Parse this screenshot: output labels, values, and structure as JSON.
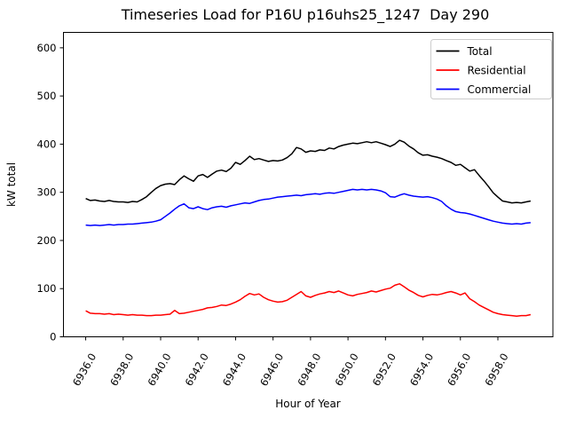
{
  "window": {
    "background": "#ffffff"
  },
  "colors": {
    "axis": "#000000",
    "legend_border": "#cccccc",
    "legend_background": "#ffffff",
    "total_line": "#000000",
    "residential_line": "#ff0000",
    "commercial_line": "#0000ff"
  },
  "chart_data": {
    "type": "line",
    "title": "Timeseries Load for P16U p16uhs25_1247  Day 290",
    "xlabel": "Hour of Year",
    "ylabel": "kW total",
    "xlim": [
      6934.8125,
      6960.9375
    ],
    "ylim": [
      0,
      632
    ],
    "grid": false,
    "legend_position": "upper right",
    "x_tick_rotation": 60,
    "xticks": {
      "values": [
        6936,
        6938,
        6940,
        6942,
        6944,
        6946,
        6948,
        6950,
        6952,
        6954,
        6956,
        6958
      ],
      "labels": [
        "6936.0",
        "6938.0",
        "6940.0",
        "6942.0",
        "6944.0",
        "6946.0",
        "6948.0",
        "6950.0",
        "6952.0",
        "6954.0",
        "6956.0",
        "6958.0"
      ]
    },
    "yticks": {
      "values": [
        0,
        100,
        200,
        300,
        400,
        500,
        600
      ],
      "labels": [
        "0",
        "100",
        "200",
        "300",
        "400",
        "500",
        "600"
      ]
    },
    "x": [
      6936.0,
      6936.25,
      6936.5,
      6936.75,
      6937.0,
      6937.25,
      6937.5,
      6937.75,
      6938.0,
      6938.25,
      6938.5,
      6938.75,
      6939.0,
      6939.25,
      6939.5,
      6939.75,
      6940.0,
      6940.25,
      6940.5,
      6940.75,
      6941.0,
      6941.25,
      6941.5,
      6941.75,
      6942.0,
      6942.25,
      6942.5,
      6942.75,
      6943.0,
      6943.25,
      6943.5,
      6943.75,
      6944.0,
      6944.25,
      6944.5,
      6944.75,
      6945.0,
      6945.25,
      6945.5,
      6945.75,
      6946.0,
      6946.25,
      6946.5,
      6946.75,
      6947.0,
      6947.25,
      6947.5,
      6947.75,
      6948.0,
      6948.25,
      6948.5,
      6948.75,
      6949.0,
      6949.25,
      6949.5,
      6949.75,
      6950.0,
      6950.25,
      6950.5,
      6950.75,
      6951.0,
      6951.25,
      6951.5,
      6951.75,
      6952.0,
      6952.25,
      6952.5,
      6952.75,
      6953.0,
      6953.25,
      6953.5,
      6953.75,
      6954.0,
      6954.25,
      6954.5,
      6954.75,
      6955.0,
      6955.25,
      6955.5,
      6955.75,
      6956.0,
      6956.25,
      6956.5,
      6956.75,
      6957.0,
      6957.25,
      6957.5,
      6957.75,
      6958.0,
      6958.25,
      6958.5,
      6958.75,
      6959.0,
      6959.25,
      6959.5,
      6959.75
    ],
    "series": [
      {
        "name": "Total",
        "color": "#000000",
        "values": [
          287,
          283,
          284,
          282,
          281,
          283,
          281,
          280,
          280,
          279,
          281,
          280,
          285,
          291,
          300,
          308,
          314,
          317,
          318,
          316,
          326,
          334,
          328,
          323,
          334,
          337,
          331,
          338,
          344,
          346,
          343,
          350,
          362,
          358,
          366,
          375,
          368,
          370,
          367,
          364,
          366,
          365,
          367,
          372,
          380,
          393,
          390,
          383,
          386,
          385,
          388,
          387,
          392,
          390,
          395,
          398,
          400,
          402,
          401,
          403,
          405,
          403,
          405,
          402,
          399,
          395,
          400,
          408,
          404,
          396,
          390,
          382,
          377,
          378,
          375,
          373,
          370,
          366,
          362,
          356,
          358,
          351,
          344,
          347,
          335,
          324,
          312,
          299,
          290,
          282,
          280,
          278,
          279,
          278,
          280,
          282
        ]
      },
      {
        "name": "Residential",
        "color": "#ff0000",
        "values": [
          54,
          49,
          48,
          48,
          47,
          48,
          46,
          47,
          46,
          45,
          46,
          45,
          45,
          44,
          44,
          45,
          45,
          46,
          47,
          55,
          48,
          49,
          51,
          53,
          55,
          57,
          60,
          61,
          63,
          66,
          65,
          68,
          72,
          77,
          84,
          90,
          87,
          89,
          82,
          77,
          74,
          72,
          73,
          76,
          82,
          88,
          94,
          85,
          82,
          86,
          89,
          91,
          94,
          92,
          95,
          91,
          87,
          85,
          88,
          90,
          92,
          95,
          93,
          96,
          99,
          101,
          107,
          110,
          104,
          97,
          92,
          86,
          83,
          86,
          88,
          87,
          89,
          92,
          94,
          91,
          87,
          91,
          79,
          73,
          66,
          61,
          56,
          51,
          48,
          46,
          45,
          44,
          43,
          44,
          44,
          46
        ]
      },
      {
        "name": "Commercial",
        "color": "#0000ff",
        "values": [
          232,
          231,
          232,
          231,
          232,
          233,
          232,
          233,
          233,
          234,
          234,
          235,
          236,
          237,
          238,
          240,
          243,
          250,
          257,
          265,
          272,
          276,
          268,
          266,
          270,
          266,
          264,
          268,
          270,
          271,
          269,
          272,
          274,
          276,
          278,
          277,
          280,
          283,
          285,
          286,
          288,
          290,
          291,
          292,
          293,
          294,
          293,
          295,
          296,
          297,
          296,
          298,
          299,
          298,
          300,
          302,
          304,
          306,
          305,
          306,
          305,
          306,
          305,
          303,
          299,
          291,
          290,
          294,
          297,
          294,
          292,
          291,
          290,
          291,
          289,
          286,
          281,
          272,
          265,
          260,
          258,
          257,
          255,
          252,
          249,
          246,
          243,
          240,
          238,
          236,
          235,
          234,
          235,
          234,
          236,
          237
        ]
      }
    ]
  }
}
